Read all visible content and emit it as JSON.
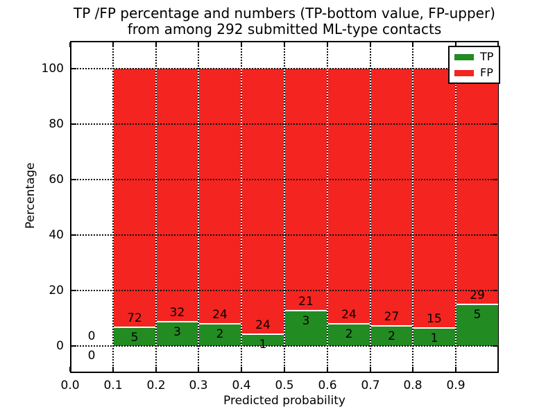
{
  "title": {
    "line1": "TP /FP percentage and numbers (TP-bottom value, FP-upper)",
    "line2": "from among 292 submitted ML-type contacts"
  },
  "chart_data": {
    "type": "bar",
    "stacked": true,
    "normalized_to_percent": true,
    "title": "TP /FP percentage and numbers (TP-bottom value, FP-upper) from among 292 submitted ML-type contacts",
    "xlabel": "Predicted probability",
    "ylabel": "Percentage",
    "total_submitted_contacts": 292,
    "xlim": [
      0.0,
      1.0
    ],
    "ylim": [
      -10,
      110
    ],
    "xticks": [
      "0.0",
      "0.1",
      "0.2",
      "0.3",
      "0.4",
      "0.5",
      "0.6",
      "0.7",
      "0.8",
      "0.9"
    ],
    "yticks": [
      0,
      20,
      40,
      60,
      80,
      100
    ],
    "grid": "dotted, drawn above bars",
    "legend": {
      "position": "upper right",
      "entries": [
        {
          "label": "TP",
          "color": "#228b22"
        },
        {
          "label": "FP",
          "color": "#f42420"
        }
      ]
    },
    "annotation_note": "each bin labeled with FP count above green top and TP count below it",
    "bins": [
      {
        "range": [
          0.0,
          0.1
        ],
        "tp": 0,
        "fp": 0
      },
      {
        "range": [
          0.1,
          0.2
        ],
        "tp": 5,
        "fp": 72
      },
      {
        "range": [
          0.2,
          0.3
        ],
        "tp": 3,
        "fp": 32
      },
      {
        "range": [
          0.3,
          0.4
        ],
        "tp": 2,
        "fp": 24
      },
      {
        "range": [
          0.4,
          0.5
        ],
        "tp": 1,
        "fp": 24
      },
      {
        "range": [
          0.5,
          0.6
        ],
        "tp": 3,
        "fp": 21
      },
      {
        "range": [
          0.6,
          0.7
        ],
        "tp": 2,
        "fp": 24
      },
      {
        "range": [
          0.7,
          0.8
        ],
        "tp": 2,
        "fp": 27
      },
      {
        "range": [
          0.8,
          0.9
        ],
        "tp": 1,
        "fp": 15
      },
      {
        "range": [
          0.9,
          1.0
        ],
        "tp": 5,
        "fp": 29
      }
    ]
  },
  "colors": {
    "tp": "#228b22",
    "fp": "#f42420",
    "grid": "#0a0a0a",
    "frame": "#000000",
    "text": "#000000",
    "background": "#ffffff"
  }
}
